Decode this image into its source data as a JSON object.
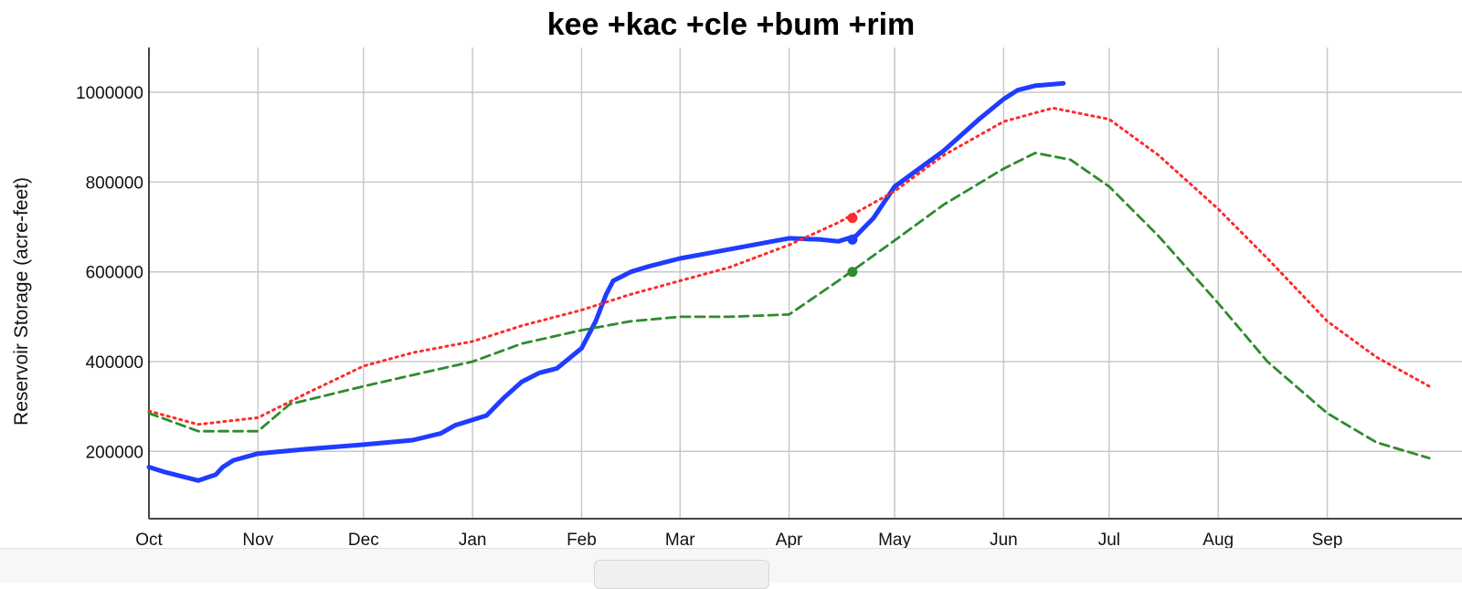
{
  "chart_data": {
    "type": "line",
    "title": "kee +kac +cle +bum +rim",
    "xlabel": "",
    "ylabel": "Reservoir Storage (acre-feet)",
    "x_ticks": [
      "Oct",
      "Nov",
      "Dec",
      "Jan",
      "Feb",
      "Mar",
      "Apr",
      "May",
      "Jun",
      "Jul",
      "Aug",
      "Sep"
    ],
    "y_ticks": [
      200000,
      400000,
      600000,
      800000,
      1000000
    ],
    "ylim": [
      50000,
      1100000
    ],
    "grid": true,
    "colors": {
      "current": "#1f3cff",
      "red": "#ff2a2a",
      "green": "#2e8b2e"
    },
    "series": [
      {
        "style": "solid",
        "color": "#1f3cff",
        "x": [
          "Oct 1",
          "Oct 5",
          "Oct 10",
          "Oct 15",
          "Oct 20",
          "Oct 22",
          "Oct 25",
          "Nov 1",
          "Nov 15",
          "Dec 1",
          "Dec 15",
          "Dec 23",
          "Dec 27",
          "Jan 5",
          "Jan 10",
          "Jan 15",
          "Jan 20",
          "Jan 25",
          "Feb 1",
          "Feb 5",
          "Feb 8",
          "Feb 10",
          "Feb 15",
          "Feb 20",
          "Mar 1",
          "Mar 15",
          "Apr 1",
          "Apr 10",
          "Apr 15",
          "Apr 20",
          "Apr 25",
          "May 1",
          "May 15",
          "May 25",
          "Jun 1",
          "Jun 5",
          "Jun 10",
          "Jun 15",
          "Jun 18"
        ],
        "y": [
          165000,
          155000,
          145000,
          135000,
          148000,
          165000,
          180000,
          195000,
          205000,
          215000,
          225000,
          240000,
          258000,
          280000,
          320000,
          355000,
          375000,
          385000,
          430000,
          490000,
          550000,
          580000,
          600000,
          612000,
          630000,
          650000,
          675000,
          672000,
          668000,
          680000,
          720000,
          790000,
          870000,
          940000,
          985000,
          1005000,
          1015000,
          1018000,
          1020000
        ]
      },
      {
        "style": "dotted",
        "color": "#ff2a2a",
        "x": [
          "Oct 1",
          "Oct 15",
          "Nov 1",
          "Nov 15",
          "Dec 1",
          "Dec 15",
          "Jan 1",
          "Jan 15",
          "Feb 1",
          "Feb 15",
          "Mar 1",
          "Mar 15",
          "Apr 1",
          "Apr 15",
          "May 1",
          "May 15",
          "Jun 1",
          "Jun 15",
          "Jul 1",
          "Jul 15",
          "Aug 1",
          "Aug 15",
          "Sep 1",
          "Sep 15",
          "Sep 30"
        ],
        "y": [
          290000,
          260000,
          275000,
          330000,
          390000,
          420000,
          445000,
          480000,
          515000,
          550000,
          580000,
          610000,
          660000,
          710000,
          780000,
          860000,
          935000,
          965000,
          940000,
          860000,
          740000,
          630000,
          490000,
          410000,
          345000
        ]
      },
      {
        "style": "dashed",
        "color": "#2e8b2e",
        "x": [
          "Oct 1",
          "Oct 15",
          "Nov 1",
          "Nov 10",
          "Dec 1",
          "Dec 15",
          "Jan 1",
          "Jan 15",
          "Feb 1",
          "Feb 15",
          "Mar 1",
          "Mar 15",
          "Apr 1",
          "Apr 15",
          "May 1",
          "May 15",
          "Jun 1",
          "Jun 10",
          "Jun 20",
          "Jul 1",
          "Jul 15",
          "Aug 1",
          "Aug 15",
          "Sep 1",
          "Sep 15",
          "Sep 30"
        ],
        "y": [
          285000,
          245000,
          245000,
          305000,
          345000,
          370000,
          400000,
          440000,
          470000,
          490000,
          500000,
          500000,
          505000,
          580000,
          670000,
          750000,
          830000,
          865000,
          850000,
          790000,
          680000,
          530000,
          400000,
          285000,
          220000,
          185000
        ]
      }
    ],
    "markers": [
      {
        "x": "Apr 19",
        "y": 720000,
        "color": "#ff2a2a"
      },
      {
        "x": "Apr 19",
        "y": 672000,
        "color": "#1f3cff"
      },
      {
        "x": "Apr 19",
        "y": 600000,
        "color": "#2e8b2e"
      }
    ]
  }
}
